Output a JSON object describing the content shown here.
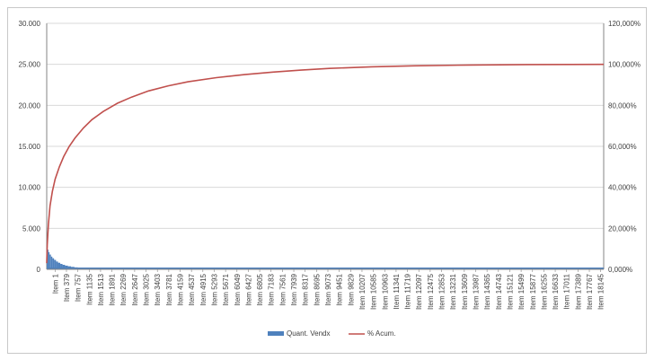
{
  "chart_data": {
    "type": "bar",
    "title": "",
    "xlabel": "",
    "ylabel": "",
    "y_left": {
      "min": 0,
      "max": 30000,
      "ticks": [
        {
          "value": 0,
          "label": "0"
        },
        {
          "value": 5000,
          "label": "5.000"
        },
        {
          "value": 10000,
          "label": "10.000"
        },
        {
          "value": 15000,
          "label": "15.000"
        },
        {
          "value": 20000,
          "label": "20.000"
        },
        {
          "value": 25000,
          "label": "25.000"
        },
        {
          "value": 30000,
          "label": "30.000"
        }
      ]
    },
    "y_right": {
      "min": 0,
      "max": 120,
      "ticks": [
        {
          "value": 0,
          "label": "0,000%"
        },
        {
          "value": 20,
          "label": "20,000%"
        },
        {
          "value": 40,
          "label": "40,000%"
        },
        {
          "value": 60,
          "label": "60,000%"
        },
        {
          "value": 80,
          "label": "80,000%"
        },
        {
          "value": 100,
          "label": "100,000%"
        },
        {
          "value": 120,
          "label": "120,000%"
        }
      ]
    },
    "x_axis": {
      "min": 1,
      "max": 19700,
      "ticks": [
        {
          "value": 1,
          "label": "Item 1"
        },
        {
          "value": 379,
          "label": "Item 379"
        },
        {
          "value": 757,
          "label": "Item 757"
        },
        {
          "value": 1135,
          "label": "Item 1135"
        },
        {
          "value": 1513,
          "label": "Item 1513"
        },
        {
          "value": 1891,
          "label": "Item 1891"
        },
        {
          "value": 2269,
          "label": "Item 2269"
        },
        {
          "value": 2647,
          "label": "Item 2647"
        },
        {
          "value": 3025,
          "label": "Item 3025"
        },
        {
          "value": 3403,
          "label": "Item 3403"
        },
        {
          "value": 3781,
          "label": "Item 3781"
        },
        {
          "value": 4159,
          "label": "Item 4159"
        },
        {
          "value": 4537,
          "label": "Item 4537"
        },
        {
          "value": 4915,
          "label": "Item 4915"
        },
        {
          "value": 5293,
          "label": "Item 5293"
        },
        {
          "value": 5671,
          "label": "Item 5671"
        },
        {
          "value": 6049,
          "label": "Item 6049"
        },
        {
          "value": 6427,
          "label": "Item 6427"
        },
        {
          "value": 6805,
          "label": "Item 6805"
        },
        {
          "value": 7183,
          "label": "Item 7183"
        },
        {
          "value": 7561,
          "label": "Item 7561"
        },
        {
          "value": 7939,
          "label": "Item 7939"
        },
        {
          "value": 8317,
          "label": "Item 8317"
        },
        {
          "value": 8695,
          "label": "Item 8695"
        },
        {
          "value": 9073,
          "label": "Item 9073"
        },
        {
          "value": 9451,
          "label": "Item 9451"
        },
        {
          "value": 9829,
          "label": "Item 9829"
        },
        {
          "value": 10207,
          "label": "Item 10207"
        },
        {
          "value": 10585,
          "label": "Item 10585"
        },
        {
          "value": 10963,
          "label": "Item 10963"
        },
        {
          "value": 11341,
          "label": "Item 11341"
        },
        {
          "value": 11719,
          "label": "Item 11719"
        },
        {
          "value": 12097,
          "label": "Item 12097"
        },
        {
          "value": 12475,
          "label": "Item 12475"
        },
        {
          "value": 12853,
          "label": "Item 12853"
        },
        {
          "value": 13231,
          "label": "Item 13231"
        },
        {
          "value": 13609,
          "label": "Item 13609"
        },
        {
          "value": 13987,
          "label": "Item 13987"
        },
        {
          "value": 14365,
          "label": "Item 14365"
        },
        {
          "value": 14743,
          "label": "Item 14743"
        },
        {
          "value": 15121,
          "label": "Item 15121"
        },
        {
          "value": 15499,
          "label": "Item 15499"
        },
        {
          "value": 15877,
          "label": "Item 15877"
        },
        {
          "value": 16255,
          "label": "Item 16255"
        },
        {
          "value": 16633,
          "label": "Item 16633"
        },
        {
          "value": 17011,
          "label": "Item 17011"
        },
        {
          "value": 17389,
          "label": "Item 17389"
        },
        {
          "value": 17767,
          "label": "Item 17767"
        },
        {
          "value": 18145,
          "label": "Item 18145"
        }
      ]
    },
    "grid": true,
    "legend": "bottom",
    "series": [
      {
        "name": "Quant. Vendx",
        "kind": "bar",
        "axis": "left",
        "color": "#4f81bd",
        "points": [
          {
            "x": 1,
            "y": 3000
          },
          {
            "x": 30,
            "y": 2400
          },
          {
            "x": 60,
            "y": 2100
          },
          {
            "x": 100,
            "y": 1800
          },
          {
            "x": 150,
            "y": 1550
          },
          {
            "x": 200,
            "y": 1350
          },
          {
            "x": 260,
            "y": 1150
          },
          {
            "x": 330,
            "y": 950
          },
          {
            "x": 400,
            "y": 800
          },
          {
            "x": 480,
            "y": 660
          },
          {
            "x": 560,
            "y": 550
          },
          {
            "x": 650,
            "y": 450
          },
          {
            "x": 750,
            "y": 370
          },
          {
            "x": 860,
            "y": 300
          },
          {
            "x": 980,
            "y": 240
          },
          {
            "x": 1100,
            "y": 190
          },
          {
            "x": 1250,
            "y": 150
          },
          {
            "x": 1400,
            "y": 115
          },
          {
            "x": 1600,
            "y": 85
          },
          {
            "x": 1800,
            "y": 60
          },
          {
            "x": 2000,
            "y": 40
          },
          {
            "x": 2300,
            "y": 25
          },
          {
            "x": 2700,
            "y": 12
          },
          {
            "x": 3200,
            "y": 6
          }
        ]
      },
      {
        "name": "% Acum.",
        "kind": "line",
        "axis": "right",
        "color": "#c0504d",
        "points": [
          {
            "x": 1,
            "y": 3
          },
          {
            "x": 20,
            "y": 12
          },
          {
            "x": 60,
            "y": 22
          },
          {
            "x": 120,
            "y": 31
          },
          {
            "x": 200,
            "y": 38
          },
          {
            "x": 300,
            "y": 44
          },
          {
            "x": 450,
            "y": 50
          },
          {
            "x": 600,
            "y": 55
          },
          {
            "x": 800,
            "y": 60
          },
          {
            "x": 1000,
            "y": 64
          },
          {
            "x": 1300,
            "y": 69
          },
          {
            "x": 1600,
            "y": 73
          },
          {
            "x": 2000,
            "y": 77
          },
          {
            "x": 2500,
            "y": 81
          },
          {
            "x": 3000,
            "y": 84
          },
          {
            "x": 3600,
            "y": 87
          },
          {
            "x": 4300,
            "y": 89.5
          },
          {
            "x": 5000,
            "y": 91.5
          },
          {
            "x": 6000,
            "y": 93.5
          },
          {
            "x": 7000,
            "y": 95
          },
          {
            "x": 8000,
            "y": 96.2
          },
          {
            "x": 9000,
            "y": 97.2
          },
          {
            "x": 10000,
            "y": 98
          },
          {
            "x": 11500,
            "y": 98.8
          },
          {
            "x": 13000,
            "y": 99.3
          },
          {
            "x": 15000,
            "y": 99.7
          },
          {
            "x": 17000,
            "y": 99.9
          },
          {
            "x": 19700,
            "y": 100
          }
        ]
      }
    ]
  }
}
